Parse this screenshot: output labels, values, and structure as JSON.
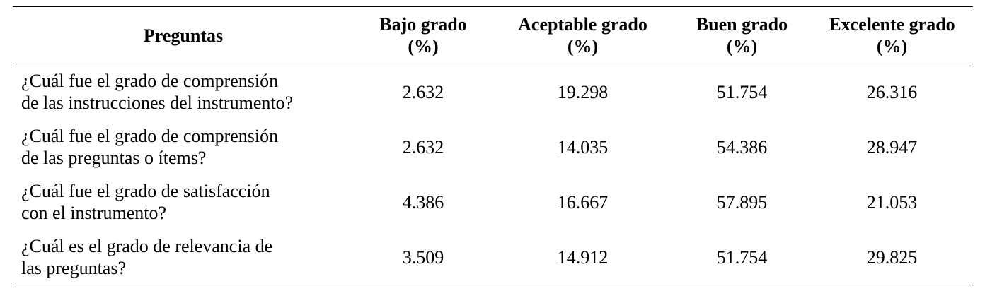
{
  "table": {
    "headers": [
      {
        "lines": [
          "Preguntas"
        ]
      },
      {
        "lines": [
          "Bajo grado",
          "(%)"
        ]
      },
      {
        "lines": [
          "Aceptable grado",
          "(%)"
        ]
      },
      {
        "lines": [
          "Buen grado",
          "(%)"
        ]
      },
      {
        "lines": [
          "Excelente grado",
          "(%)"
        ]
      }
    ],
    "rows": [
      {
        "question": [
          "¿Cuál fue el grado de comprensión",
          "de las instrucciones del instrumento?"
        ],
        "values": [
          "2.632",
          "19.298",
          "51.754",
          "26.316"
        ]
      },
      {
        "question": [
          "¿Cuál fue el grado de comprensión",
          "de las preguntas o ítems?"
        ],
        "values": [
          "2.632",
          "14.035",
          "54.386",
          "28.947"
        ]
      },
      {
        "question": [
          "¿Cuál fue el grado de satisfacción",
          "con el instrumento?"
        ],
        "values": [
          "4.386",
          "16.667",
          "57.895",
          "21.053"
        ]
      },
      {
        "question": [
          "¿Cuál es el grado de relevancia de",
          "las preguntas?"
        ],
        "values": [
          "3.509",
          "14.912",
          "51.754",
          "29.825"
        ]
      }
    ]
  }
}
